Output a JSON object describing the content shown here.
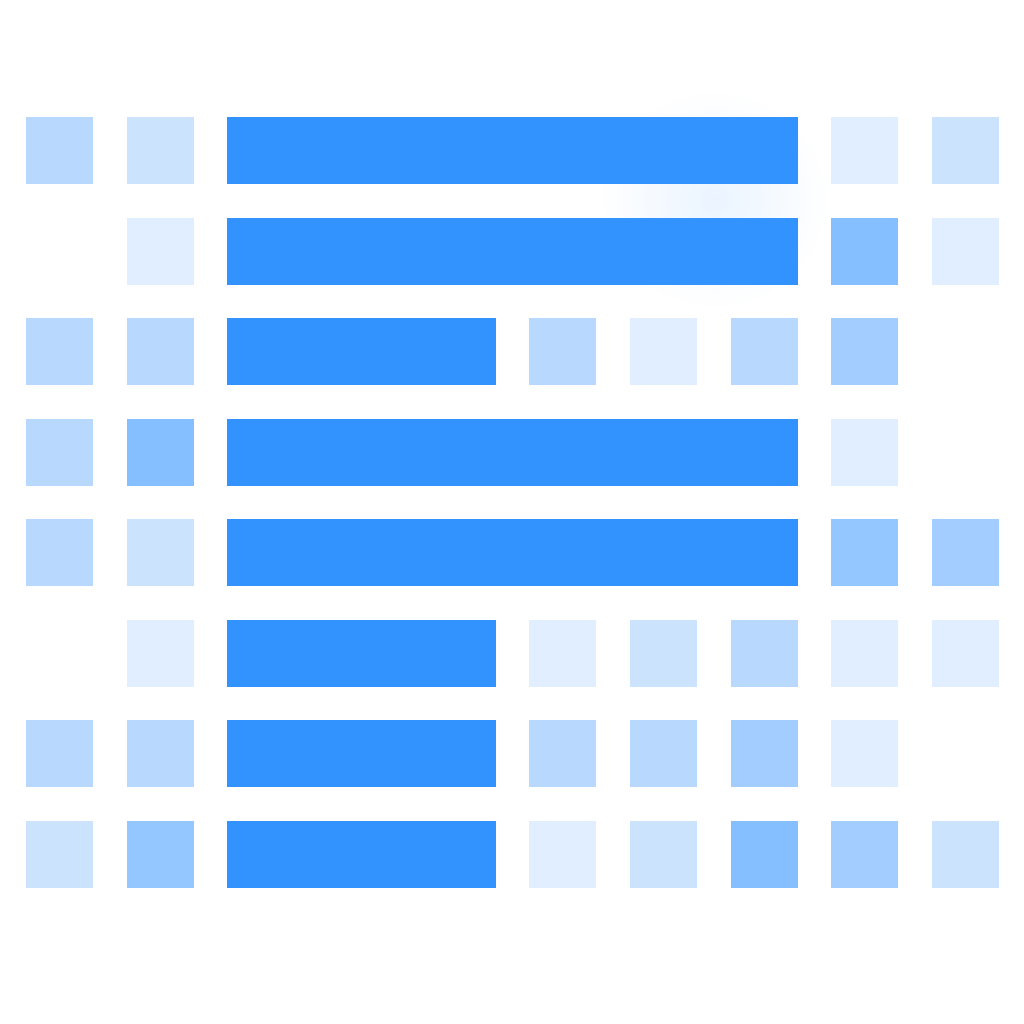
{
  "colors": {
    "bar": "#3293ff",
    "background": "#ffffff"
  },
  "bars": [
    {
      "row": 0,
      "start_col": 2,
      "end_col": 7
    },
    {
      "row": 1,
      "start_col": 2,
      "end_col": 7
    },
    {
      "row": 2,
      "start_col": 2,
      "end_col": 4
    },
    {
      "row": 3,
      "start_col": 2,
      "end_col": 7
    },
    {
      "row": 4,
      "start_col": 2,
      "end_col": 7
    },
    {
      "row": 5,
      "start_col": 2,
      "end_col": 4
    },
    {
      "row": 6,
      "start_col": 2,
      "end_col": 4
    },
    {
      "row": 7,
      "start_col": 2,
      "end_col": 4
    }
  ],
  "cells": [
    [
      "#b9d8fd",
      "#cce3fe",
      null,
      null,
      null,
      null,
      null,
      null,
      "#e0eeff",
      "#cce3fe"
    ],
    [
      null,
      "#e0eeff",
      null,
      null,
      null,
      null,
      null,
      null,
      "#86bfff",
      "#e0eeff"
    ],
    [
      "#b9d8fd",
      "#b9d8fd",
      null,
      null,
      null,
      "#b9d8fd",
      "#e0eeff",
      "#b9d8fd",
      "#a3cdfe",
      null
    ],
    [
      "#b9d8fd",
      "#86bfff",
      null,
      null,
      null,
      null,
      null,
      null,
      "#e0eeff",
      null
    ],
    [
      "#b9d8fd",
      "#cce3fe",
      null,
      null,
      null,
      null,
      null,
      null,
      "#94c6ff",
      "#a3cdfe"
    ],
    [
      null,
      "#e0eeff",
      null,
      null,
      null,
      "#e0eeff",
      "#cce3fe",
      "#b9d8fd",
      "#e0eeff",
      "#e0eeff"
    ],
    [
      "#b9d8fd",
      "#b9d8fd",
      null,
      null,
      null,
      "#b9d8fd",
      "#b9d8fd",
      "#a3cdfe",
      "#e0eeff",
      null
    ],
    [
      "#cce3fe",
      "#94c6ff",
      null,
      null,
      null,
      "#e0eeff",
      "#cce3fe",
      "#86bfff",
      "#a3cdfe",
      "#cce3fe"
    ]
  ]
}
